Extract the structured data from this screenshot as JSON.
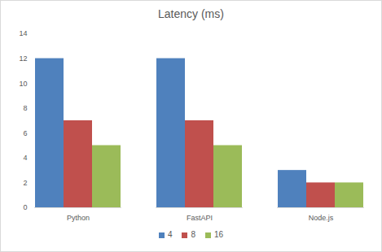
{
  "chart_data": {
    "type": "bar",
    "title": "Latency (ms)",
    "categories": [
      "Python",
      "FastAPI",
      "Node.js"
    ],
    "series": [
      {
        "name": "4",
        "color": "#4f81bd",
        "values": [
          12,
          12,
          3
        ]
      },
      {
        "name": "8",
        "color": "#c0504d",
        "values": [
          7,
          7,
          2
        ]
      },
      {
        "name": "16",
        "color": "#9bbb59",
        "values": [
          5,
          5,
          2
        ]
      }
    ],
    "ylim": [
      0,
      14
    ],
    "yticks": [
      0,
      2,
      4,
      6,
      8,
      10,
      12,
      14
    ],
    "grid": false,
    "legend": "bottom"
  }
}
